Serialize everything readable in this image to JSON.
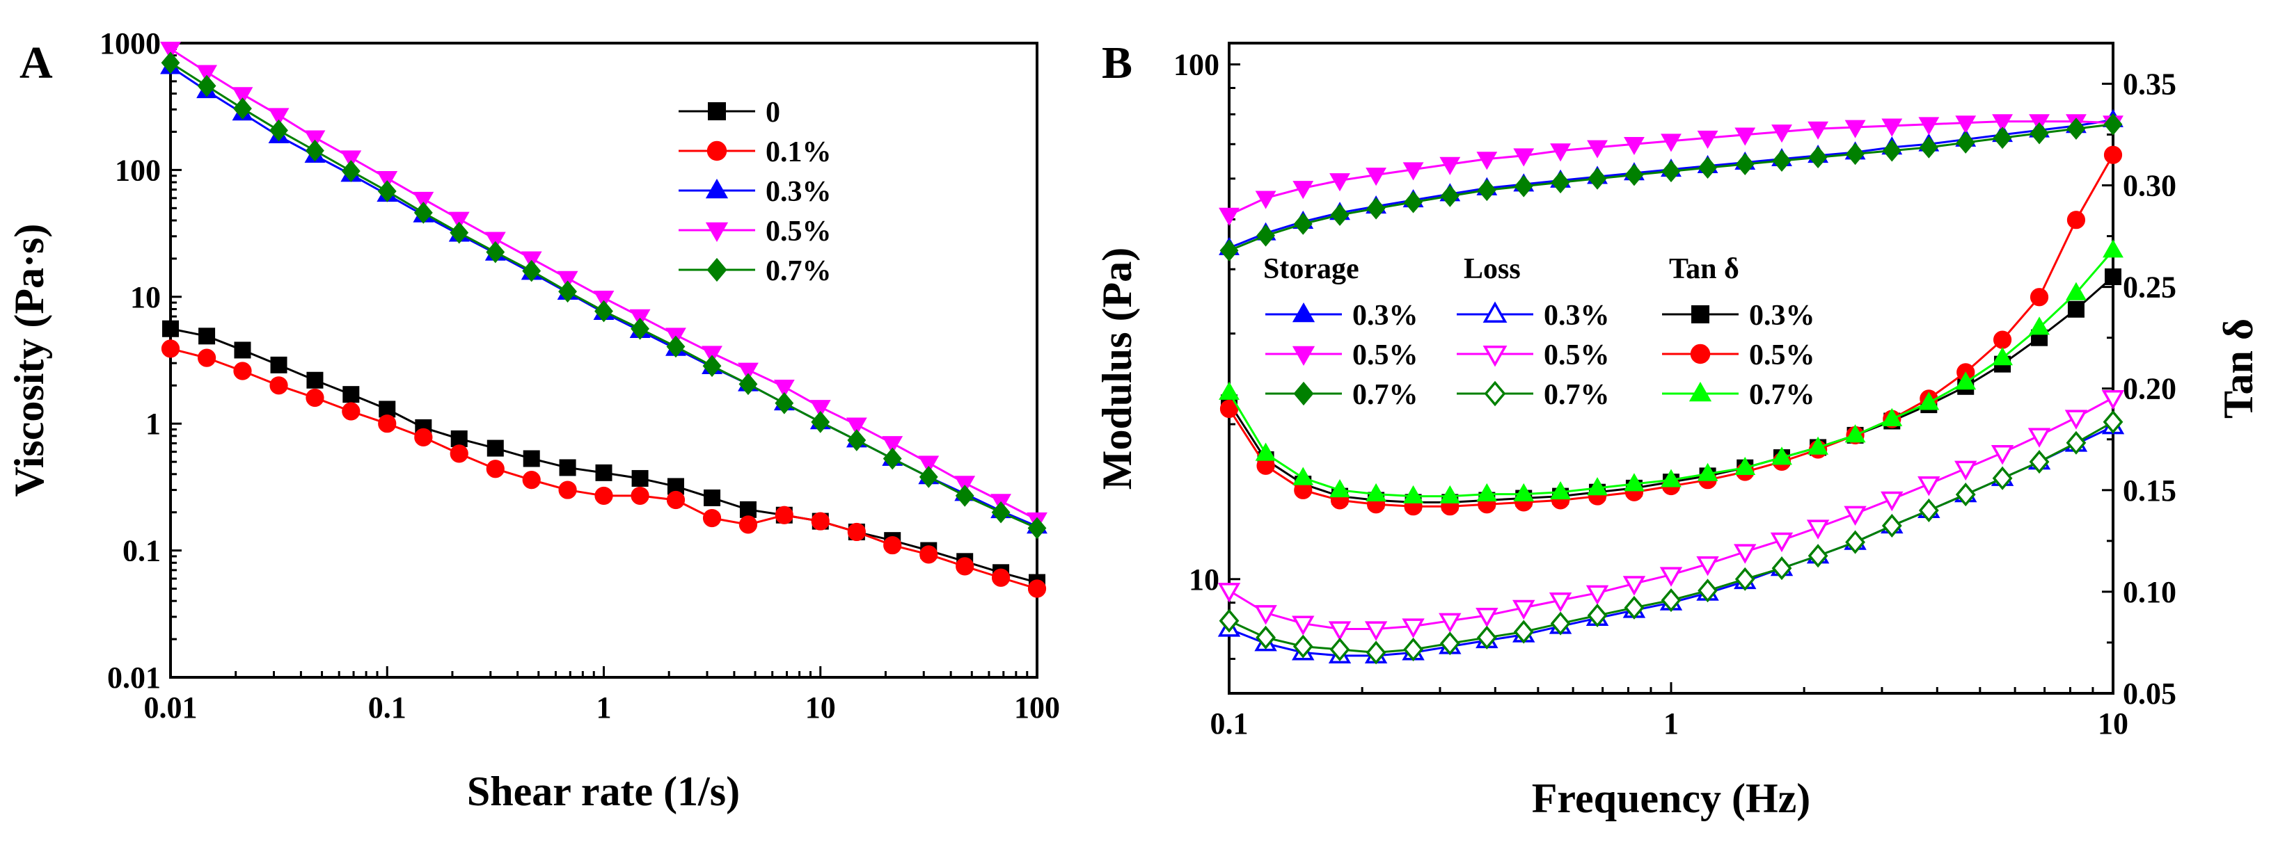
{
  "chart_data": [
    {
      "panel": "A",
      "type": "line",
      "xlabel": "Shear rate (1/s)",
      "ylabel": "Viscosity (Pa·s)",
      "xscale": "log",
      "yscale": "log",
      "xlim": [
        0.01,
        100
      ],
      "ylim": [
        0.01,
        1000
      ],
      "xticks": [
        "0.01",
        "0.1",
        "1",
        "10",
        "100"
      ],
      "yticks": [
        "0.01",
        "0.1",
        "1",
        "10",
        "100",
        "1000"
      ],
      "legend_position": "top-right",
      "x": [
        0.01,
        0.0147,
        0.0215,
        0.0316,
        0.0464,
        0.0681,
        0.1,
        0.147,
        0.215,
        0.316,
        0.464,
        0.681,
        1,
        1.47,
        2.15,
        3.16,
        4.64,
        6.81,
        10,
        14.7,
        21.5,
        31.6,
        46.4,
        68.1,
        100
      ],
      "series": [
        {
          "name": "0",
          "color": "#000000",
          "marker": "square",
          "values": [
            5.6,
            4.9,
            3.8,
            2.9,
            2.2,
            1.7,
            1.3,
            0.93,
            0.76,
            0.64,
            0.53,
            0.45,
            0.41,
            0.37,
            0.32,
            0.26,
            0.21,
            0.19,
            0.17,
            0.14,
            0.12,
            0.1,
            0.082,
            0.067,
            0.056
          ]
        },
        {
          "name": "0.1%",
          "color": "#ff0000",
          "marker": "circle",
          "values": [
            3.9,
            3.3,
            2.6,
            2.0,
            1.6,
            1.25,
            1.0,
            0.78,
            0.58,
            0.44,
            0.36,
            0.3,
            0.27,
            0.27,
            0.25,
            0.18,
            0.16,
            0.19,
            0.17,
            0.14,
            0.11,
            0.093,
            0.075,
            0.061,
            0.05
          ]
        },
        {
          "name": "0.3%",
          "color": "#0000ff",
          "marker": "triangle-up",
          "values": [
            650,
            420,
            280,
            185,
            130,
            92,
            64,
            44,
            31,
            22,
            15.5,
            10.8,
            7.5,
            5.4,
            3.9,
            2.8,
            2.05,
            1.45,
            1.03,
            0.74,
            0.53,
            0.38,
            0.28,
            0.205,
            0.155
          ]
        },
        {
          "name": "0.5%",
          "color": "#ff00ff",
          "marker": "triangle-down",
          "values": [
            900,
            590,
            395,
            270,
            180,
            125,
            86,
            59,
            41,
            28.5,
            20,
            14,
            9.8,
            7.0,
            5.0,
            3.6,
            2.65,
            1.95,
            1.35,
            0.98,
            0.7,
            0.49,
            0.34,
            0.245,
            0.175
          ]
        },
        {
          "name": "0.7%",
          "color": "#008000",
          "marker": "diamond",
          "values": [
            700,
            460,
            305,
            205,
            142,
            98,
            68,
            46,
            32,
            22.5,
            16,
            11,
            7.7,
            5.6,
            4.05,
            2.85,
            2.05,
            1.45,
            1.03,
            0.74,
            0.53,
            0.38,
            0.27,
            0.2,
            0.15
          ]
        }
      ]
    },
    {
      "panel": "B",
      "type": "line",
      "xlabel": "Frequency (Hz)",
      "ylabel": "Modulus (Pa)",
      "y2label": "Tan δ",
      "xscale": "log",
      "yscale": "log",
      "xlim": [
        0.1,
        10
      ],
      "ylim": [
        6,
        110
      ],
      "y2lim": [
        0.05,
        0.37
      ],
      "xticks": [
        "0.1",
        "1",
        "10"
      ],
      "yticks": [
        "10",
        "100"
      ],
      "y2ticks": [
        "0.05",
        "0.10",
        "0.15",
        "0.20",
        "0.25",
        "0.30",
        "0.35"
      ],
      "legend_position": "center-left",
      "legend_headers": [
        "Storage",
        "Loss",
        "Tan  δ"
      ],
      "x": [
        0.1,
        0.121,
        0.147,
        0.178,
        0.215,
        0.261,
        0.316,
        0.383,
        0.464,
        0.562,
        0.681,
        0.825,
        1,
        1.21,
        1.47,
        1.78,
        2.15,
        2.61,
        3.16,
        3.83,
        4.64,
        5.62,
        6.81,
        8.25,
        10
      ],
      "series": [
        {
          "group": "Storage",
          "name": "0.3%",
          "color": "#0000ff",
          "marker": "triangle-up",
          "filled": true,
          "axis": "left",
          "values": [
            44,
            47,
            49.5,
            51.5,
            53,
            54.5,
            56,
            57.5,
            58.5,
            59.5,
            60.5,
            61.5,
            62.5,
            63.5,
            64.5,
            65.5,
            66.5,
            67.5,
            69,
            70,
            71.5,
            73,
            74.5,
            76,
            78
          ]
        },
        {
          "group": "Storage",
          "name": "0.5%",
          "color": "#ff00ff",
          "marker": "triangle-down",
          "filled": true,
          "axis": "left",
          "values": [
            51,
            55,
            57.5,
            59.5,
            61,
            62.5,
            64,
            65.5,
            66.5,
            68,
            69,
            70,
            71,
            72,
            73,
            74,
            75,
            75.5,
            76,
            76.5,
            77,
            77.5,
            77.5,
            77.5,
            77
          ]
        },
        {
          "group": "Storage",
          "name": "0.7%",
          "color": "#008000",
          "marker": "diamond",
          "filled": true,
          "axis": "left",
          "values": [
            43.5,
            46.5,
            49,
            51,
            52.5,
            54,
            55.5,
            57,
            58,
            59,
            60,
            61,
            62,
            63,
            64,
            65,
            66,
            67,
            68,
            69,
            70.5,
            72,
            73.5,
            75,
            76.5
          ]
        },
        {
          "group": "Loss",
          "name": "0.3%",
          "color": "#0000ff",
          "marker": "triangle-up",
          "filled": false,
          "axis": "left",
          "values": [
            8.0,
            7.5,
            7.2,
            7.1,
            7.1,
            7.2,
            7.4,
            7.6,
            7.8,
            8.1,
            8.4,
            8.7,
            9.0,
            9.4,
            9.9,
            10.5,
            11.1,
            11.8,
            12.7,
            13.6,
            14.6,
            15.7,
            16.9,
            18.3,
            19.8
          ]
        },
        {
          "group": "Loss",
          "name": "0.5%",
          "color": "#ff00ff",
          "marker": "triangle-down",
          "filled": false,
          "axis": "left",
          "values": [
            9.5,
            8.6,
            8.2,
            8.0,
            8.0,
            8.1,
            8.3,
            8.5,
            8.8,
            9.1,
            9.4,
            9.8,
            10.2,
            10.7,
            11.3,
            11.9,
            12.6,
            13.4,
            14.3,
            15.3,
            16.4,
            17.6,
            19.0,
            20.6,
            22.5
          ]
        },
        {
          "group": "Loss",
          "name": "0.7%",
          "color": "#008000",
          "marker": "diamond",
          "filled": false,
          "axis": "left",
          "values": [
            8.3,
            7.7,
            7.4,
            7.3,
            7.2,
            7.3,
            7.5,
            7.7,
            7.9,
            8.2,
            8.5,
            8.8,
            9.1,
            9.5,
            10.0,
            10.5,
            11.1,
            11.8,
            12.7,
            13.6,
            14.6,
            15.7,
            16.9,
            18.4,
            20.2
          ]
        },
        {
          "group": "Tan  δ",
          "name": "0.3%",
          "color": "#000000",
          "marker": "square",
          "filled": true,
          "axis": "right",
          "values": [
            0.193,
            0.165,
            0.153,
            0.147,
            0.145,
            0.144,
            0.144,
            0.145,
            0.146,
            0.147,
            0.149,
            0.151,
            0.154,
            0.157,
            0.161,
            0.166,
            0.171,
            0.177,
            0.184,
            0.192,
            0.201,
            0.212,
            0.225,
            0.239,
            0.255
          ]
        },
        {
          "group": "Tan  δ",
          "name": "0.5%",
          "color": "#ff0000",
          "marker": "circle",
          "filled": true,
          "axis": "right",
          "values": [
            0.19,
            0.162,
            0.15,
            0.145,
            0.143,
            0.142,
            0.142,
            0.143,
            0.144,
            0.145,
            0.147,
            0.149,
            0.152,
            0.155,
            0.159,
            0.164,
            0.17,
            0.177,
            0.185,
            0.195,
            0.208,
            0.224,
            0.245,
            0.283,
            0.315
          ]
        },
        {
          "group": "Tan  δ",
          "name": "0.7%",
          "color": "#00ff00",
          "marker": "triangle-up",
          "filled": true,
          "axis": "right",
          "values": [
            0.198,
            0.168,
            0.156,
            0.15,
            0.148,
            0.147,
            0.147,
            0.148,
            0.148,
            0.149,
            0.151,
            0.153,
            0.155,
            0.158,
            0.161,
            0.166,
            0.171,
            0.177,
            0.185,
            0.193,
            0.203,
            0.215,
            0.23,
            0.247,
            0.268
          ]
        }
      ]
    }
  ]
}
